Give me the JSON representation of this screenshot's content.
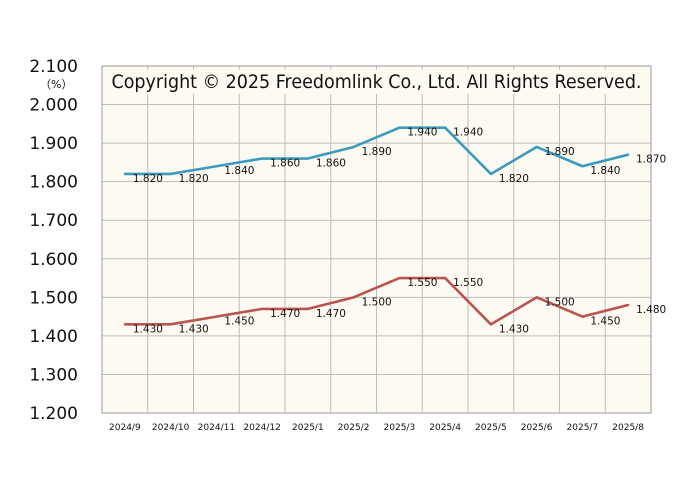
{
  "chart_data": {
    "type": "line",
    "title": "",
    "watermark": "Copyright © 2025 Freedomlink Co., Ltd. All Rights Reserved.",
    "unit": "（%）",
    "xlabel": "",
    "ylabel": "",
    "categories": [
      "2024/9",
      "2024/10",
      "2024/11",
      "2024/12",
      "2025/1",
      "2025/2",
      "2025/3",
      "2025/4",
      "2025/5",
      "2025/6",
      "2025/7",
      "2025/8"
    ],
    "ylim": [
      1.2,
      2.1
    ],
    "yticks": [
      "1.200",
      "1.300",
      "1.400",
      "1.500",
      "1.600",
      "1.700",
      "1.800",
      "1.900",
      "2.000",
      "2.100"
    ],
    "grid": true,
    "plot_background": "#fdfaf2",
    "series": [
      {
        "color": "#3a9bbd",
        "values": [
          1.82,
          1.82,
          1.84,
          1.86,
          1.86,
          1.89,
          1.94,
          1.94,
          1.82,
          1.89,
          1.84,
          1.87
        ],
        "labels": [
          "1.820",
          "1.820",
          "1.840",
          "1.860",
          "1.860",
          "1.890",
          "1.940",
          "1.940",
          "1.820",
          "1.890",
          "1.840",
          "1.870"
        ]
      },
      {
        "color": "#b95451",
        "values": [
          1.43,
          1.43,
          1.45,
          1.47,
          1.47,
          1.5,
          1.55,
          1.55,
          1.43,
          1.5,
          1.45,
          1.48
        ],
        "labels": [
          "1.430",
          "1.430",
          "1.450",
          "1.470",
          "1.470",
          "1.500",
          "1.550",
          "1.550",
          "1.430",
          "1.500",
          "1.450",
          "1.480"
        ]
      }
    ]
  }
}
